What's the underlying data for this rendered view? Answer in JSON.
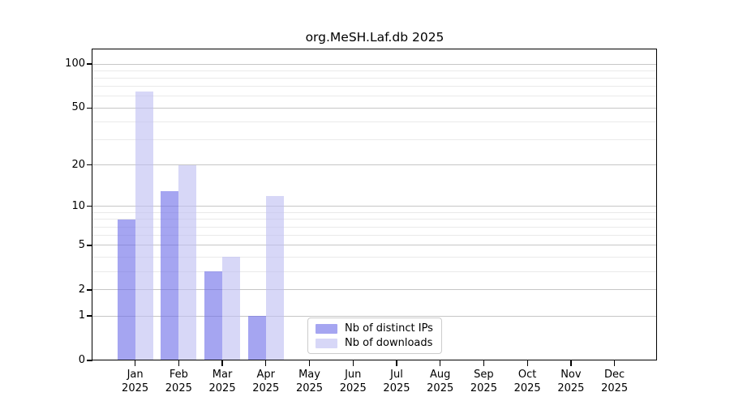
{
  "chart_data": {
    "type": "bar",
    "title": "org.MeSH.Laf.db 2025",
    "year_label": "2025",
    "categories": [
      "Jan",
      "Feb",
      "Mar",
      "Apr",
      "May",
      "Jun",
      "Jul",
      "Aug",
      "Sep",
      "Oct",
      "Nov",
      "Dec"
    ],
    "series": [
      {
        "name": "Nb of distinct IPs",
        "color": "rgba(110,110,232,0.62)",
        "values": [
          8,
          13,
          3,
          1,
          0,
          0,
          0,
          0,
          0,
          0,
          0,
          0
        ]
      },
      {
        "name": "Nb of downloads",
        "color": "rgba(190,190,242,0.62)",
        "values": [
          65,
          20,
          4,
          12,
          0,
          0,
          0,
          0,
          0,
          0,
          0,
          0
        ]
      }
    ],
    "xlabel": "",
    "ylabel": "",
    "y_ticks": [
      0,
      1,
      2,
      5,
      10,
      20,
      50,
      100
    ],
    "y_minor_ticks": [
      3,
      4,
      6,
      7,
      8,
      9,
      30,
      40,
      60,
      70,
      80,
      90
    ],
    "scale": "log10(1+y)",
    "ylim": [
      0,
      126
    ],
    "grid": "on",
    "legend_position": "inside-bottom-center"
  },
  "colors": {
    "background": "#ffffff",
    "bar_distinct_ips": "rgba(110,110,232,0.62)",
    "bar_downloads": "rgba(190,190,242,0.62)",
    "grid_major": "#c6c6c6",
    "grid_minor": "#eaeaea",
    "axis": "#000000",
    "legend_border": "#cccccc",
    "text": "#000000"
  }
}
